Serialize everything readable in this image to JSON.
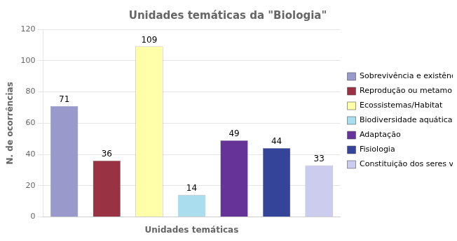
{
  "chart_data": {
    "type": "bar",
    "title": "Unidades temáticas da \"Biologia\"",
    "xlabel": "Unidades temáticas",
    "ylabel": "N. de ocorrências",
    "categories": [
      "Sobrevivência e existência de vida",
      "Reprodução ou metamorfose",
      "Ecossistemas/Habitat",
      "Biodiversidade aquática",
      "Adaptação",
      "Fisiologia",
      "Constituição dos seres vivos"
    ],
    "values": [
      71,
      36,
      109,
      14,
      49,
      44,
      33
    ],
    "colors": [
      "#9999cc",
      "#993344",
      "#ffffaa",
      "#aaddee",
      "#663399",
      "#334499",
      "#ccccee"
    ],
    "ylim": [
      0,
      120
    ],
    "yticks": [
      0,
      20,
      40,
      60,
      80,
      100,
      120
    ],
    "grid": true,
    "legend": "right",
    "data_labels": true,
    "tick_labels": "y"
  }
}
